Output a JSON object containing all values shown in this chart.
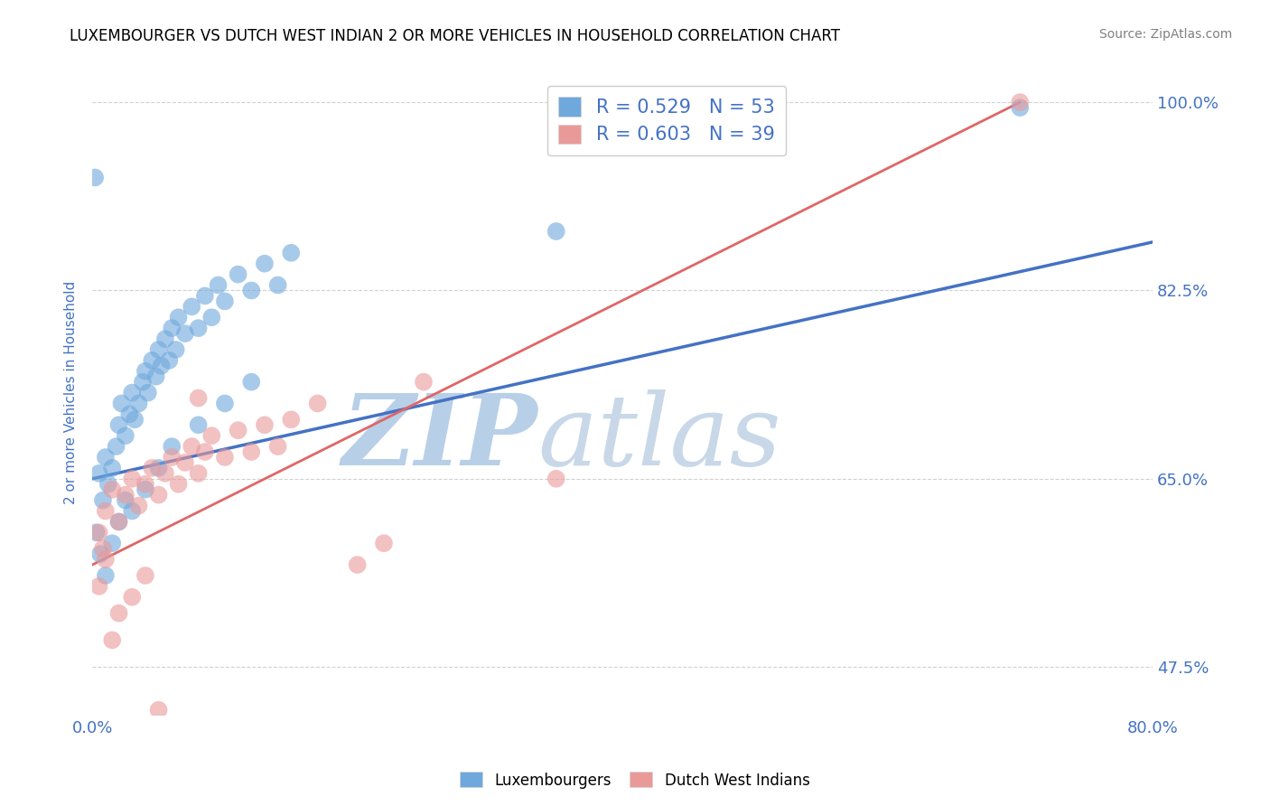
{
  "title": "LUXEMBOURGER VS DUTCH WEST INDIAN 2 OR MORE VEHICLES IN HOUSEHOLD CORRELATION CHART",
  "source": "Source: ZipAtlas.com",
  "ylabel": "2 or more Vehicles in Household",
  "xlim": [
    0.0,
    80.0
  ],
  "ylim": [
    43.0,
    103.0
  ],
  "xtick_positions": [
    0,
    10,
    20,
    30,
    40,
    50,
    60,
    70,
    80
  ],
  "xticklabels": [
    "0.0%",
    "",
    "",
    "",
    "",
    "",
    "",
    "",
    "80.0%"
  ],
  "ytick_positions": [
    47.5,
    65.0,
    82.5,
    100.0
  ],
  "ytick_labels": [
    "47.5%",
    "65.0%",
    "82.5%",
    "100.0%"
  ],
  "blue_R": 0.529,
  "blue_N": 53,
  "pink_R": 0.603,
  "pink_N": 39,
  "blue_color": "#6fa8dc",
  "pink_color": "#ea9999",
  "blue_line_color": "#4472c4",
  "pink_line_color": "#e06666",
  "blue_scatter": [
    [
      0.5,
      65.5
    ],
    [
      0.8,
      63.0
    ],
    [
      1.0,
      67.0
    ],
    [
      1.2,
      64.5
    ],
    [
      1.5,
      66.0
    ],
    [
      1.8,
      68.0
    ],
    [
      2.0,
      70.0
    ],
    [
      2.2,
      72.0
    ],
    [
      2.5,
      69.0
    ],
    [
      2.8,
      71.0
    ],
    [
      3.0,
      73.0
    ],
    [
      3.2,
      70.5
    ],
    [
      3.5,
      72.0
    ],
    [
      3.8,
      74.0
    ],
    [
      4.0,
      75.0
    ],
    [
      4.2,
      73.0
    ],
    [
      4.5,
      76.0
    ],
    [
      4.8,
      74.5
    ],
    [
      5.0,
      77.0
    ],
    [
      5.2,
      75.5
    ],
    [
      5.5,
      78.0
    ],
    [
      5.8,
      76.0
    ],
    [
      6.0,
      79.0
    ],
    [
      6.3,
      77.0
    ],
    [
      6.5,
      80.0
    ],
    [
      7.0,
      78.5
    ],
    [
      7.5,
      81.0
    ],
    [
      8.0,
      79.0
    ],
    [
      8.5,
      82.0
    ],
    [
      9.0,
      80.0
    ],
    [
      9.5,
      83.0
    ],
    [
      10.0,
      81.5
    ],
    [
      11.0,
      84.0
    ],
    [
      12.0,
      82.5
    ],
    [
      13.0,
      85.0
    ],
    [
      14.0,
      83.0
    ],
    [
      15.0,
      86.0
    ],
    [
      0.3,
      60.0
    ],
    [
      0.6,
      58.0
    ],
    [
      1.0,
      56.0
    ],
    [
      1.5,
      59.0
    ],
    [
      2.0,
      61.0
    ],
    [
      2.5,
      63.0
    ],
    [
      3.0,
      62.0
    ],
    [
      4.0,
      64.0
    ],
    [
      5.0,
      66.0
    ],
    [
      6.0,
      68.0
    ],
    [
      8.0,
      70.0
    ],
    [
      10.0,
      72.0
    ],
    [
      12.0,
      74.0
    ],
    [
      35.0,
      88.0
    ],
    [
      0.2,
      93.0
    ],
    [
      70.0,
      99.5
    ]
  ],
  "pink_scatter": [
    [
      0.5,
      60.0
    ],
    [
      0.8,
      58.5
    ],
    [
      1.0,
      62.0
    ],
    [
      1.5,
      64.0
    ],
    [
      2.0,
      61.0
    ],
    [
      2.5,
      63.5
    ],
    [
      3.0,
      65.0
    ],
    [
      3.5,
      62.5
    ],
    [
      4.0,
      64.5
    ],
    [
      4.5,
      66.0
    ],
    [
      5.0,
      63.5
    ],
    [
      5.5,
      65.5
    ],
    [
      6.0,
      67.0
    ],
    [
      6.5,
      64.5
    ],
    [
      7.0,
      66.5
    ],
    [
      7.5,
      68.0
    ],
    [
      8.0,
      65.5
    ],
    [
      8.5,
      67.5
    ],
    [
      9.0,
      69.0
    ],
    [
      10.0,
      67.0
    ],
    [
      11.0,
      69.5
    ],
    [
      12.0,
      67.5
    ],
    [
      13.0,
      70.0
    ],
    [
      14.0,
      68.0
    ],
    [
      15.0,
      70.5
    ],
    [
      17.0,
      72.0
    ],
    [
      20.0,
      57.0
    ],
    [
      22.0,
      59.0
    ],
    [
      25.0,
      74.0
    ],
    [
      0.5,
      55.0
    ],
    [
      1.0,
      57.5
    ],
    [
      1.5,
      50.0
    ],
    [
      2.0,
      52.5
    ],
    [
      3.0,
      54.0
    ],
    [
      4.0,
      56.0
    ],
    [
      5.0,
      43.5
    ],
    [
      8.0,
      72.5
    ],
    [
      70.0,
      100.0
    ],
    [
      35.0,
      65.0
    ]
  ],
  "watermark_zip": "ZIP",
  "watermark_atlas": "atlas",
  "watermark_color": "#d0e4f5",
  "background_color": "#ffffff",
  "grid_color": "#cccccc",
  "title_color": "#000000",
  "axis_label_color": "#4472c4",
  "tick_color": "#4472c4",
  "legend_text_color": "#4472c4"
}
